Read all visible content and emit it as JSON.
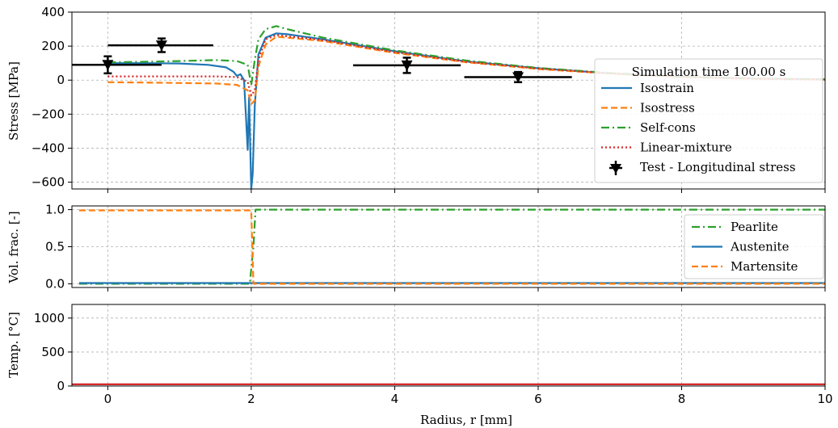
{
  "chart_data": [
    {
      "type": "line",
      "panel": "stress",
      "ylabel": "Stress [MPa]",
      "xlabel": "",
      "xlim": [
        -0.5,
        10
      ],
      "ylim": [
        -640,
        400
      ],
      "yticks": [
        -600,
        -400,
        -200,
        0,
        200,
        400
      ],
      "ytick_labels": [
        "−600",
        "−400",
        "−200",
        "0",
        "200",
        "400"
      ],
      "grid": true,
      "legend_title": "Simulation time 100.00 s",
      "legend_position": "right",
      "series": [
        {
          "name": "Isostrain",
          "color": "#1f77b4",
          "style": "solid",
          "x": [
            0,
            0.5,
            1.0,
            1.4,
            1.65,
            1.75,
            1.8,
            1.85,
            1.9,
            1.95,
            1.97,
            2.0,
            2.02,
            2.05,
            2.1,
            2.2,
            2.35,
            2.5,
            3.0,
            4.0,
            5.0,
            6.0,
            7.0,
            8.0,
            9.0,
            10.0
          ],
          "y": [
            100,
            100,
            98,
            90,
            75,
            50,
            25,
            35,
            0,
            -410,
            -100,
            -640,
            -550,
            -150,
            150,
            250,
            275,
            270,
            240,
            170,
            110,
            70,
            40,
            20,
            10,
            5
          ]
        },
        {
          "name": "Isostress",
          "color": "#ff7f0e",
          "style": "dashed",
          "x": [
            0,
            0.5,
            1.0,
            1.5,
            1.8,
            1.95,
            2.0,
            2.05,
            2.1,
            2.2,
            2.35,
            2.5,
            3.0,
            4.0,
            5.0,
            6.0,
            7.0,
            8.0,
            9.0,
            10.0
          ],
          "y": [
            -12,
            -14,
            -17,
            -20,
            -28,
            -60,
            -140,
            -120,
            80,
            210,
            255,
            250,
            230,
            160,
            105,
            65,
            38,
            18,
            8,
            3
          ]
        },
        {
          "name": "Self-cons",
          "color": "#2ca02c",
          "style": "dashdot",
          "x": [
            0,
            0.5,
            1.0,
            1.5,
            1.8,
            1.95,
            2.0,
            2.05,
            2.1,
            2.2,
            2.35,
            2.5,
            3.0,
            4.0,
            5.0,
            6.0,
            7.0,
            8.0,
            9.0,
            10.0
          ],
          "y": [
            105,
            108,
            112,
            118,
            112,
            90,
            -30,
            120,
            240,
            300,
            318,
            300,
            250,
            175,
            115,
            72,
            42,
            20,
            9,
            4
          ]
        },
        {
          "name": "Linear-mixture",
          "color": "#d62728",
          "style": "dotted",
          "x": [
            0,
            0.5,
            1.0,
            1.5,
            1.8,
            1.95,
            2.0,
            2.05,
            2.1,
            2.2,
            2.35,
            2.5,
            3.0,
            4.0,
            5.0,
            6.0,
            7.0,
            8.0,
            9.0,
            10.0
          ],
          "y": [
            22,
            22,
            22,
            22,
            18,
            -10,
            -90,
            -60,
            120,
            240,
            265,
            258,
            235,
            165,
            108,
            68,
            40,
            19,
            8,
            3
          ]
        }
      ],
      "test_points": {
        "name": "Test - Longitudinal stress",
        "color": "#000000",
        "points": [
          {
            "x": 0.0,
            "y": 90,
            "err": 50,
            "xmin": -0.5,
            "xmax": 0.75
          },
          {
            "x": 0.75,
            "y": 205,
            "err": 40,
            "xmin": 0.0,
            "xmax": 1.47
          },
          {
            "x": 4.17,
            "y": 87,
            "err": 45,
            "xmin": 3.42,
            "xmax": 4.92
          },
          {
            "x": 5.72,
            "y": 18,
            "err": 30,
            "xmin": 4.97,
            "xmax": 6.47
          }
        ]
      }
    },
    {
      "type": "line",
      "panel": "volume_fraction",
      "ylabel": "Vol. frac. [-]",
      "xlabel": "",
      "xlim": [
        -0.5,
        10
      ],
      "ylim": [
        -0.05,
        1.05
      ],
      "yticks": [
        0.0,
        0.5,
        1.0
      ],
      "ytick_labels": [
        "0.0",
        "0.5",
        "1.0"
      ],
      "grid": true,
      "legend_position": "right",
      "series": [
        {
          "name": "Pearlite",
          "color": "#2ca02c",
          "style": "dashdot",
          "x": [
            -0.4,
            1.98,
            2.03,
            2.06,
            10.0
          ],
          "y": [
            0.0,
            0.0,
            0.5,
            1.0,
            1.0
          ]
        },
        {
          "name": "Austenite",
          "color": "#1f77b4",
          "style": "solid",
          "x": [
            -0.4,
            10.0
          ],
          "y": [
            0.01,
            0.01
          ]
        },
        {
          "name": "Martensite",
          "color": "#ff7f0e",
          "style": "dashed",
          "x": [
            -0.4,
            2.0,
            2.03,
            10.0
          ],
          "y": [
            0.99,
            0.99,
            0.0,
            0.0
          ]
        }
      ]
    },
    {
      "type": "line",
      "panel": "temperature",
      "ylabel": "Temp. [°C]",
      "xlabel": "Radius, r [mm]",
      "xlim": [
        -0.5,
        10
      ],
      "ylim": [
        0,
        1200
      ],
      "yticks": [
        0,
        500,
        1000
      ],
      "ytick_labels": [
        "0",
        "500",
        "1000"
      ],
      "xticks": [
        0,
        2,
        4,
        6,
        8,
        10
      ],
      "xtick_labels": [
        "0",
        "2",
        "4",
        "6",
        "8",
        "10"
      ],
      "grid": true,
      "series": [
        {
          "name": "",
          "color": "#d62728",
          "style": "solid",
          "x": [
            -0.5,
            10.0
          ],
          "y": [
            25,
            25
          ]
        }
      ]
    }
  ]
}
